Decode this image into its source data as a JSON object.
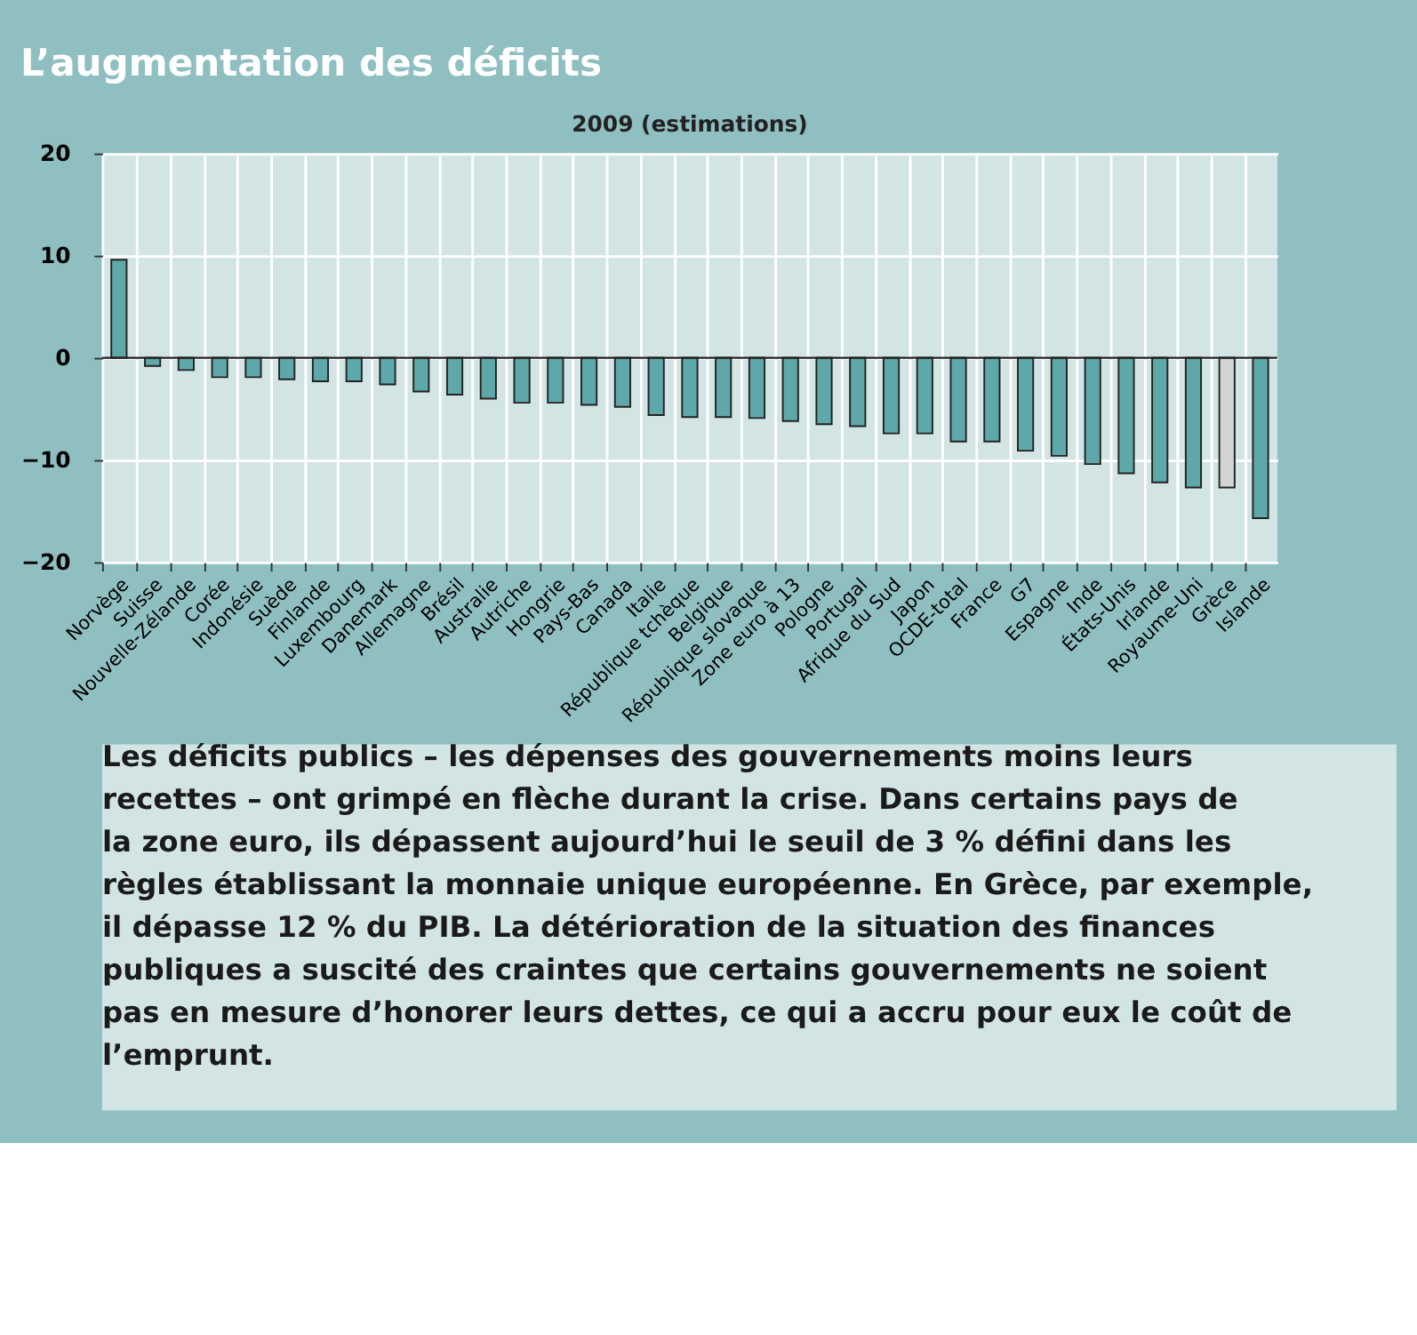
{
  "chart_data": {
    "type": "bar",
    "title": "L’augmentation des déficits",
    "subtitle": "2009 (estimations)",
    "categories": [
      "Norvège",
      "Suisse",
      "Nouvelle-Zélande",
      "Corée",
      "Indonésie",
      "Suède",
      "Finlande",
      "Luxembourg",
      "Danemark",
      "Allemagne",
      "Brésil",
      "Australie",
      "Autriche",
      "Hongrie",
      "Pays-Bas",
      "Canada",
      "Italie",
      "République tchèque",
      "Belgique",
      "République slovaque",
      "Zone euro à 13",
      "Pologne",
      "Portugal",
      "Afrique du Sud",
      "Japon",
      "OCDE-total",
      "France",
      "G7",
      "Espagne",
      "Inde",
      "États-Unis",
      "Irlande",
      "Royaume-Uni",
      "Grèce",
      "Islande"
    ],
    "values": [
      9.6,
      -0.8,
      -1.2,
      -1.9,
      -1.9,
      -2.1,
      -2.3,
      -2.3,
      -2.6,
      -3.3,
      -3.6,
      -4.0,
      -4.4,
      -4.4,
      -4.6,
      -4.8,
      -5.6,
      -5.8,
      -5.8,
      -5.9,
      -6.2,
      -6.5,
      -6.7,
      -7.4,
      -7.4,
      -8.2,
      -8.2,
      -9.1,
      -9.6,
      -10.4,
      -11.3,
      -12.2,
      -12.7,
      -12.7,
      -15.7
    ],
    "colors": [
      "#5fa8aa",
      "#5fa8aa",
      "#5fa8aa",
      "#5fa8aa",
      "#5fa8aa",
      "#5fa8aa",
      "#5fa8aa",
      "#5fa8aa",
      "#5fa8aa",
      "#5fa8aa",
      "#5fa8aa",
      "#5fa8aa",
      "#5fa8aa",
      "#5fa8aa",
      "#5fa8aa",
      "#5fa8aa",
      "#5fa8aa",
      "#5fa8aa",
      "#5fa8aa",
      "#5fa8aa",
      "#5fa8aa",
      "#5fa8aa",
      "#5fa8aa",
      "#5fa8aa",
      "#5fa8aa",
      "#5fa8aa",
      "#5fa8aa",
      "#5fa8aa",
      "#5fa8aa",
      "#5fa8aa",
      "#5fa8aa",
      "#5fa8aa",
      "#5fa8aa",
      "#d4d4d4",
      "#5fa8aa"
    ],
    "ylim": [
      -20,
      20
    ],
    "yticks": [
      -20,
      -10,
      0,
      10,
      20
    ],
    "grid": true,
    "annotations": [
      "Les déficits publics – les dépenses des gouvernements moins leurs recettes – ont grimpé en flèche durant la crise. Dans certains pays de la zone euro, ils dépassent aujourd’hui le seuil de 3 % défini dans les règles établissant la monnaie unique européenne. En Grèce, par exemple, il dépasse 12 % du PIB. La détérioration de la situation des finances publiques a suscité des craintes que certains gouvernements ne soient pas en mesure d’honorer leurs dettes, ce qui a accru pour eux le coût de l’emprunt."
    ]
  }
}
